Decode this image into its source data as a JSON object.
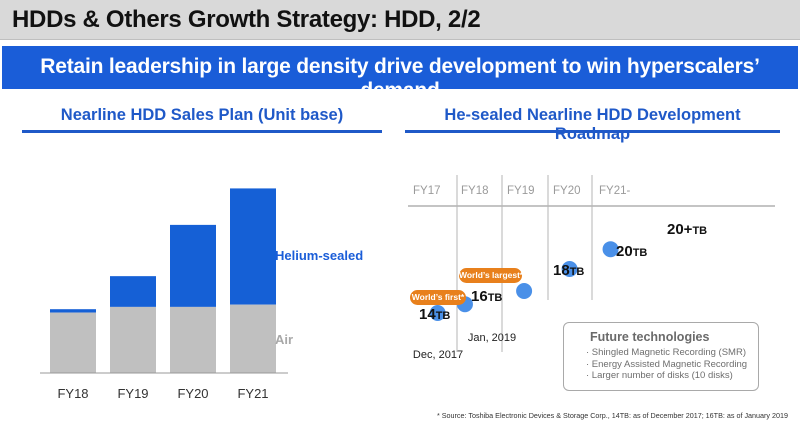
{
  "header": {
    "title": "HDDs & Others Growth Strategy: HDD, 2/2",
    "banner": "Retain leadership in large density drive development to win hyperscalers’ demand"
  },
  "left_panel": {
    "title": "Nearline HDD Sales Plan (Unit base)",
    "legend": {
      "helium": "Helium-sealed",
      "air": "Air"
    }
  },
  "right_panel": {
    "title": "He-sealed Nearline HDD Development Roadmap"
  },
  "colors": {
    "accent": "#1f59c8",
    "banner": "#1a5dd8",
    "helium": "#1560d6",
    "air": "#c0c0c0",
    "badge": "#e8801c",
    "dot": "#4a90e8"
  },
  "chart_data": [
    {
      "type": "bar",
      "stacked": true,
      "title": "Nearline HDD Sales Plan (Unit base)",
      "categories": [
        "FY18",
        "FY19",
        "FY20",
        "FY21"
      ],
      "series": [
        {
          "name": "Air",
          "values": [
            53,
            58,
            58,
            60
          ]
        },
        {
          "name": "Helium-sealed",
          "values": [
            3,
            27,
            72,
            102
          ]
        }
      ],
      "ylim": [
        0,
        165
      ],
      "units": "relative (no numeric axis shown)"
    },
    {
      "type": "scatter",
      "title": "He-sealed Nearline HDD Development Roadmap",
      "x_ticks": [
        "FY17",
        "FY18",
        "FY19",
        "FY20",
        "FY21-"
      ],
      "points": [
        {
          "capacity": "14",
          "unit": "TB",
          "fiscal_pos": 0.3,
          "level": 1.0,
          "badge": "World’s first*",
          "date": "Dec, 2017"
        },
        {
          "capacity": "16",
          "unit": "TB",
          "fiscal_pos": 0.9,
          "level": 1.4,
          "badge": "World’s largest*",
          "date": "Jan, 2019"
        },
        {
          "capacity": "18",
          "unit": "TB",
          "fiscal_pos": 2.2,
          "level": 2.0
        },
        {
          "capacity": "20",
          "unit": "TB",
          "fiscal_pos": 3.2,
          "level": 3.0
        },
        {
          "capacity": "20+",
          "unit": "TB",
          "fiscal_pos": 4.1,
          "level": 3.9
        }
      ]
    }
  ],
  "future_technologies": {
    "title": "Future technologies",
    "items": [
      "· Shingled Magnetic Recording (SMR)",
      "· Energy Assisted Magnetic Recording",
      "· Larger number of disks (10 disks)"
    ]
  },
  "footnote": "* Source: Toshiba Electronic Devices & Storage Corp., 14TB: as of December 2017; 16TB: as of January 2019"
}
